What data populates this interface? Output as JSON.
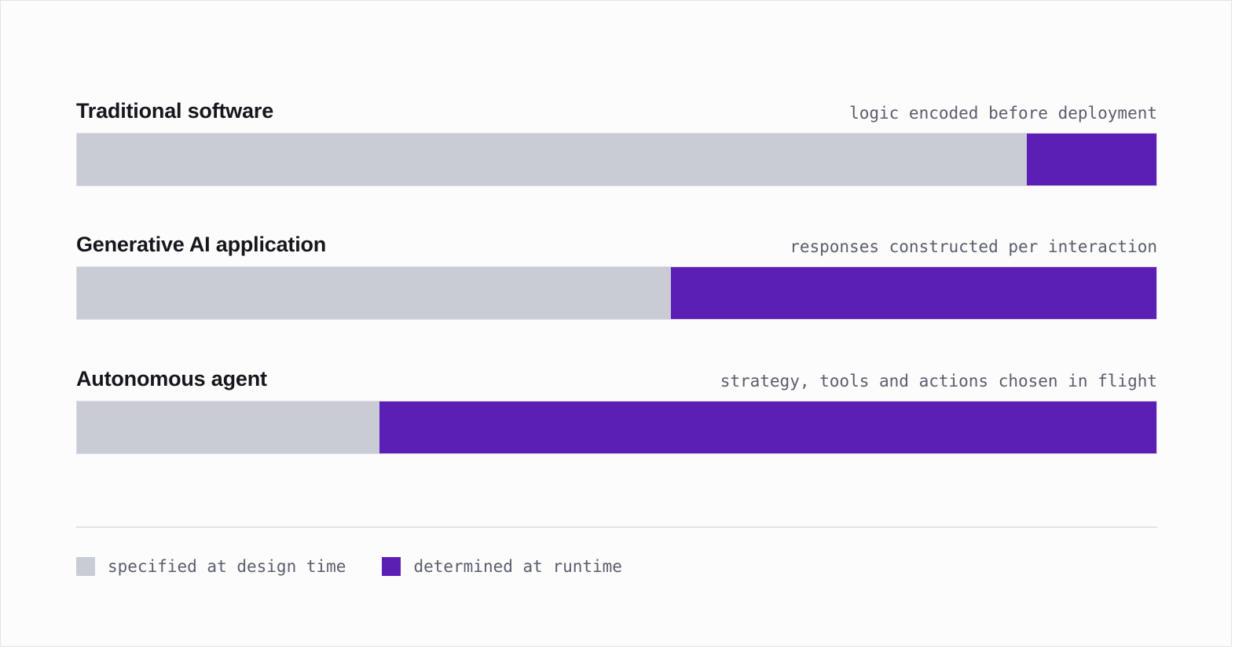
{
  "chart_data": {
    "type": "bar",
    "orientation": "horizontal",
    "stacked": true,
    "normalized": true,
    "categories": [
      "Traditional software",
      "Generative AI application",
      "Autonomous agent"
    ],
    "annotations": [
      "logic encoded before deployment",
      "responses constructed per interaction",
      "strategy, tools and actions chosen in flight"
    ],
    "series": [
      {
        "name": "specified at design time",
        "color": "#c9ccd5",
        "values": [
          0.88,
          0.55,
          0.28
        ]
      },
      {
        "name": "determined at runtime",
        "color": "#5b1fb5",
        "values": [
          0.12,
          0.45,
          0.72
        ]
      }
    ],
    "xlim": [
      0,
      1
    ],
    "grid": false,
    "legend_position": "bottom-left"
  }
}
